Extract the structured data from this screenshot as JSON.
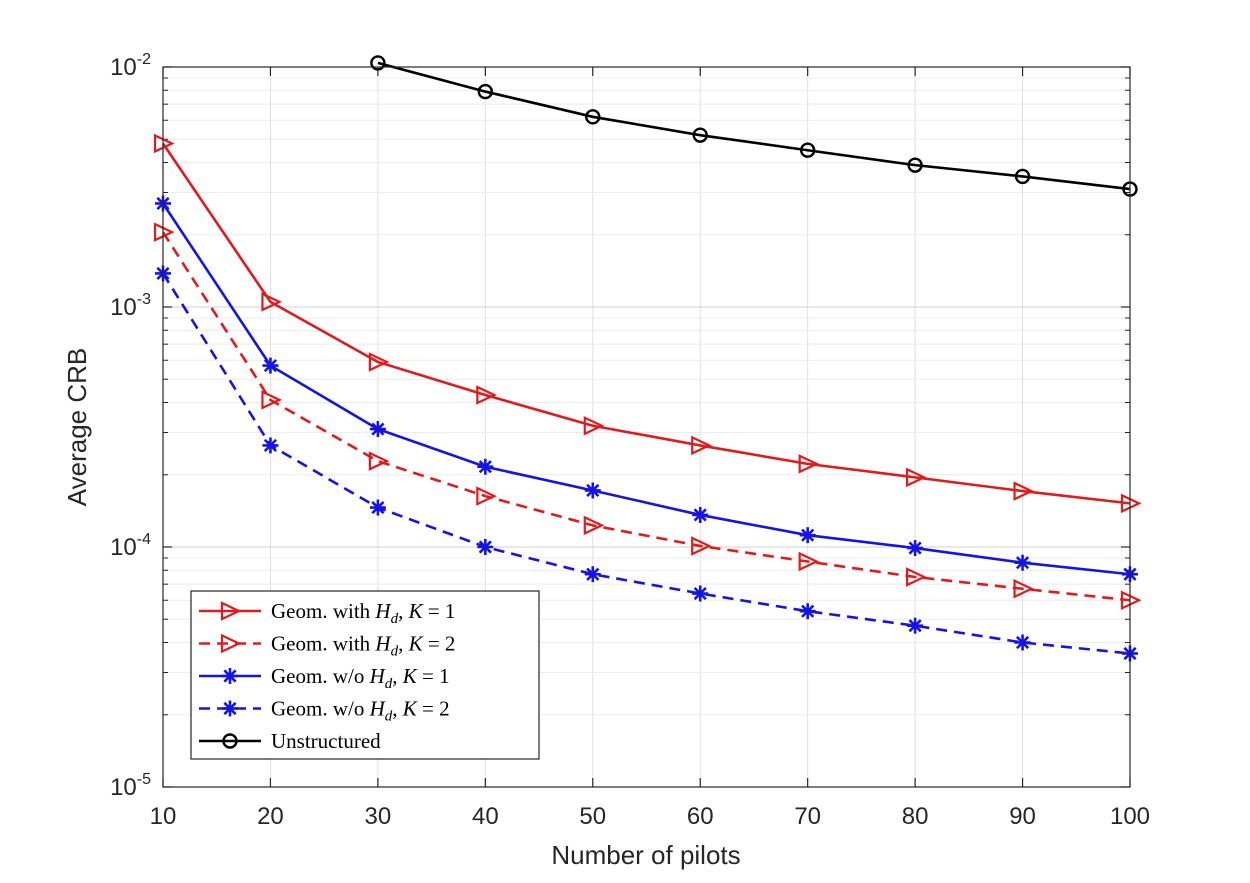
{
  "chart_data": {
    "type": "line",
    "y_scale": "log",
    "xlabel": "Number of pilots",
    "ylabel": "Average CRB",
    "xlim": [
      10,
      100
    ],
    "ylim": [
      1e-05,
      0.01
    ],
    "x_ticks": [
      "10",
      "20",
      "30",
      "40",
      "50",
      "60",
      "70",
      "80",
      "90",
      "100"
    ],
    "y_ticks": [
      {
        "base": "10",
        "exp": "-5"
      },
      {
        "base": "10",
        "exp": "-4"
      },
      {
        "base": "10",
        "exp": "-3"
      },
      {
        "base": "10",
        "exp": "-2"
      }
    ],
    "grid": true,
    "legend_position": "bottom-left",
    "x": [
      10,
      20,
      30,
      40,
      50,
      60,
      70,
      80,
      90,
      100
    ],
    "series": [
      {
        "name": "Geom. with H_d, K = 1",
        "legend": {
          "prefix": "Geom. with ",
          "var": "H",
          "sub": "d",
          "mid": ", ",
          "k": "K",
          "eq": " = 1"
        },
        "color": "#e31a1c",
        "dash": "solid",
        "marker": "triangle-right",
        "values": [
          0.0048,
          0.00105,
          0.00059,
          0.00043,
          0.00032,
          0.000265,
          0.000222,
          0.000195,
          0.000171,
          0.000152
        ]
      },
      {
        "name": "Geom. with H_d, K = 2",
        "legend": {
          "prefix": "Geom. with ",
          "var": "H",
          "sub": "d",
          "mid": ", ",
          "k": "K",
          "eq": " = 2"
        },
        "color": "#e31a1c",
        "dash": "dashed",
        "marker": "triangle-right",
        "values": [
          0.00205,
          0.00041,
          0.000228,
          0.000163,
          0.000123,
          0.000101,
          8.7e-05,
          7.5e-05,
          6.7e-05,
          6e-05
        ]
      },
      {
        "name": "Geom. w/o H_d, K = 1",
        "legend": {
          "prefix": "Geom. w/o ",
          "var": "H",
          "sub": "d",
          "mid": ", ",
          "k": "K",
          "eq": " = 1"
        },
        "color": "#1414e6",
        "dash": "solid",
        "marker": "asterisk",
        "values": [
          0.0027,
          0.00057,
          0.00031,
          0.000216,
          0.000172,
          0.000136,
          0.000112,
          9.9e-05,
          8.6e-05,
          7.7e-05
        ]
      },
      {
        "name": "Geom. w/o H_d, K = 2",
        "legend": {
          "prefix": "Geom. w/o ",
          "var": "H",
          "sub": "d",
          "mid": ", ",
          "k": "K",
          "eq": " = 2"
        },
        "color": "#1414e6",
        "dash": "dashed",
        "marker": "asterisk",
        "values": [
          0.00138,
          0.000265,
          0.000146,
          0.0001,
          7.7e-05,
          6.4e-05,
          5.4e-05,
          4.7e-05,
          4e-05,
          3.6e-05
        ]
      },
      {
        "name": "Unstructured",
        "legend": {
          "prefix": "Unstructured",
          "var": "",
          "sub": "",
          "mid": "",
          "k": "",
          "eq": ""
        },
        "color": "#000000",
        "dash": "solid",
        "marker": "circle",
        "values": [
          null,
          null,
          0.0104,
          0.0079,
          0.0062,
          0.0052,
          0.0045,
          0.0039,
          0.0035,
          0.0031
        ]
      }
    ]
  }
}
